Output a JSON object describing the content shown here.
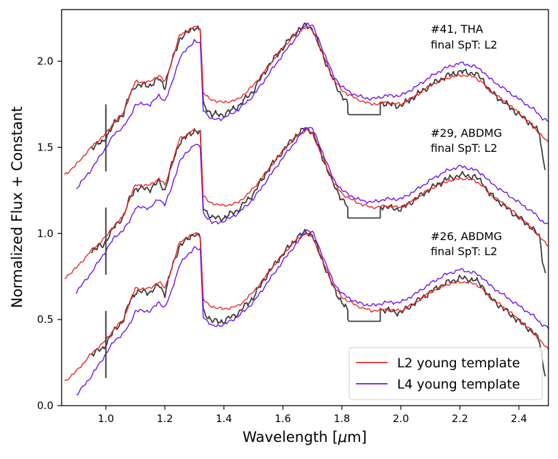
{
  "chart_data": {
    "type": "line",
    "xlabel": "Wavelength [",
    "xlabel_symbol": "μ",
    "xlabel_unit": "m]",
    "ylabel": "Normalized Flux + Constant",
    "xlim": [
      0.85,
      2.5
    ],
    "ylim": [
      0.0,
      2.3
    ],
    "x_ticks": [
      "1.0",
      "1.2",
      "1.4",
      "1.6",
      "1.8",
      "2.0",
      "2.2",
      "2.4"
    ],
    "x_tick_values": [
      1.0,
      1.2,
      1.4,
      1.6,
      1.8,
      2.0,
      2.2,
      2.4
    ],
    "y_ticks": [
      "0.0",
      "0.5",
      "1.0",
      "1.5",
      "2.0"
    ],
    "y_tick_values": [
      0.0,
      0.5,
      1.0,
      1.5,
      2.0
    ],
    "colors": {
      "observed": "#3a3a3a",
      "L2": "#ee2222",
      "L4": "#6a0ff0"
    },
    "spectra": [
      {
        "id": "41",
        "line1": "#41, THA",
        "line2": "final SpT: L2",
        "offset": 1.2
      },
      {
        "id": "29",
        "line1": "#29, ABDMG",
        "line2": "final SpT: L2",
        "offset": 0.6
      },
      {
        "id": "26",
        "line1": "#26, ABDMG",
        "line2": "final SpT: L2",
        "offset": 0.0
      }
    ],
    "legend": [
      {
        "label": "L2 young template",
        "color": "#ee2222"
      },
      {
        "label": "L4 young template",
        "color": "#6a0ff0"
      }
    ],
    "legend_position": "lower-right",
    "base_profiles": {
      "L2": [
        [
          0.86,
          0.14
        ],
        [
          0.9,
          0.2
        ],
        [
          0.95,
          0.3
        ],
        [
          1.0,
          0.38
        ],
        [
          1.03,
          0.45
        ],
        [
          1.06,
          0.5
        ],
        [
          1.08,
          0.6
        ],
        [
          1.1,
          0.68
        ],
        [
          1.15,
          0.68
        ],
        [
          1.18,
          0.72
        ],
        [
          1.2,
          0.68
        ],
        [
          1.22,
          0.78
        ],
        [
          1.25,
          0.95
        ],
        [
          1.28,
          0.98
        ],
        [
          1.3,
          1.0
        ],
        [
          1.32,
          0.99
        ],
        [
          1.33,
          0.62
        ],
        [
          1.35,
          0.58
        ],
        [
          1.4,
          0.56
        ],
        [
          1.45,
          0.58
        ],
        [
          1.5,
          0.66
        ],
        [
          1.55,
          0.77
        ],
        [
          1.6,
          0.88
        ],
        [
          1.65,
          0.97
        ],
        [
          1.68,
          1.0
        ],
        [
          1.7,
          0.98
        ],
        [
          1.73,
          0.86
        ],
        [
          1.77,
          0.7
        ],
        [
          1.8,
          0.63
        ],
        [
          1.85,
          0.58
        ],
        [
          1.9,
          0.55
        ],
        [
          1.95,
          0.56
        ],
        [
          2.0,
          0.55
        ],
        [
          2.05,
          0.6
        ],
        [
          2.1,
          0.66
        ],
        [
          2.15,
          0.7
        ],
        [
          2.2,
          0.72
        ],
        [
          2.25,
          0.71
        ],
        [
          2.28,
          0.67
        ],
        [
          2.3,
          0.63
        ],
        [
          2.35,
          0.57
        ],
        [
          2.4,
          0.5
        ],
        [
          2.45,
          0.42
        ],
        [
          2.48,
          0.36
        ],
        [
          2.5,
          0.33
        ]
      ],
      "L4": [
        [
          0.9,
          0.06
        ],
        [
          0.95,
          0.17
        ],
        [
          1.0,
          0.3
        ],
        [
          1.03,
          0.38
        ],
        [
          1.06,
          0.42
        ],
        [
          1.08,
          0.47
        ],
        [
          1.1,
          0.55
        ],
        [
          1.15,
          0.55
        ],
        [
          1.18,
          0.6
        ],
        [
          1.2,
          0.57
        ],
        [
          1.22,
          0.65
        ],
        [
          1.25,
          0.82
        ],
        [
          1.28,
          0.88
        ],
        [
          1.3,
          0.92
        ],
        [
          1.32,
          0.9
        ],
        [
          1.33,
          0.52
        ],
        [
          1.36,
          0.46
        ],
        [
          1.4,
          0.47
        ],
        [
          1.45,
          0.52
        ],
        [
          1.5,
          0.6
        ],
        [
          1.55,
          0.72
        ],
        [
          1.6,
          0.84
        ],
        [
          1.65,
          0.95
        ],
        [
          1.68,
          1.02
        ],
        [
          1.7,
          1.01
        ],
        [
          1.73,
          0.89
        ],
        [
          1.77,
          0.72
        ],
        [
          1.8,
          0.65
        ],
        [
          1.85,
          0.6
        ],
        [
          1.9,
          0.58
        ],
        [
          1.95,
          0.6
        ],
        [
          2.0,
          0.6
        ],
        [
          2.05,
          0.65
        ],
        [
          2.1,
          0.71
        ],
        [
          2.15,
          0.76
        ],
        [
          2.2,
          0.79
        ],
        [
          2.25,
          0.77
        ],
        [
          2.28,
          0.74
        ],
        [
          2.3,
          0.7
        ],
        [
          2.35,
          0.64
        ],
        [
          2.4,
          0.58
        ],
        [
          2.45,
          0.52
        ],
        [
          2.48,
          0.47
        ],
        [
          2.5,
          0.45
        ]
      ],
      "observed": [
        [
          0.95,
          0.3
        ],
        [
          0.99,
          0.33
        ],
        [
          1.0,
          0.36
        ],
        [
          1.03,
          0.44
        ],
        [
          1.06,
          0.5
        ],
        [
          1.08,
          0.6
        ],
        [
          1.1,
          0.66
        ],
        [
          1.15,
          0.66
        ],
        [
          1.18,
          0.7
        ],
        [
          1.2,
          0.65
        ],
        [
          1.22,
          0.78
        ],
        [
          1.25,
          0.93
        ],
        [
          1.28,
          0.97
        ],
        [
          1.3,
          1.0
        ],
        [
          1.32,
          0.98
        ],
        [
          1.33,
          0.55
        ],
        [
          1.36,
          0.49
        ],
        [
          1.4,
          0.49
        ],
        [
          1.45,
          0.54
        ],
        [
          1.5,
          0.63
        ],
        [
          1.55,
          0.77
        ],
        [
          1.6,
          0.88
        ],
        [
          1.65,
          0.98
        ],
        [
          1.68,
          1.01
        ],
        [
          1.7,
          0.99
        ],
        [
          1.73,
          0.86
        ],
        [
          1.77,
          0.69
        ],
        [
          1.8,
          0.6
        ],
        [
          1.82,
          0.55
        ],
        [
          1.82,
          0.49
        ],
        [
          1.93,
          0.49
        ],
        [
          1.93,
          0.56
        ],
        [
          1.96,
          0.55
        ],
        [
          2.0,
          0.54
        ],
        [
          2.05,
          0.6
        ],
        [
          2.1,
          0.66
        ],
        [
          2.15,
          0.71
        ],
        [
          2.2,
          0.74
        ],
        [
          2.25,
          0.73
        ],
        [
          2.28,
          0.69
        ],
        [
          2.3,
          0.63
        ],
        [
          2.35,
          0.56
        ],
        [
          2.4,
          0.49
        ],
        [
          2.44,
          0.44
        ],
        [
          2.47,
          0.38
        ],
        [
          2.48,
          0.25
        ],
        [
          2.49,
          0.17
        ]
      ]
    }
  }
}
